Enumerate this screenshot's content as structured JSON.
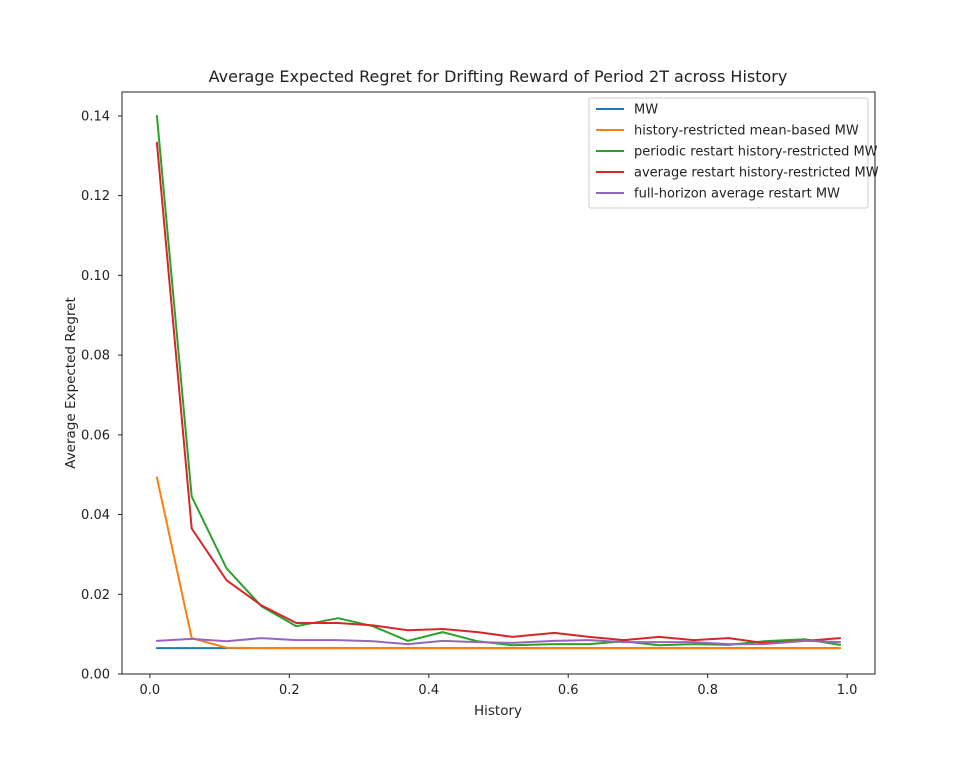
{
  "chart_data": {
    "type": "line",
    "title": "Average Expected Regret for Drifting Reward of Period 2T across History",
    "xlabel": "History",
    "ylabel": "Average Expected Regret",
    "xlim": [
      -0.04,
      1.04
    ],
    "ylim": [
      0.0,
      0.146
    ],
    "xticks": [
      0.0,
      0.2,
      0.4,
      0.6,
      0.8,
      1.0
    ],
    "xtick_labels": [
      "0.0",
      "0.2",
      "0.4",
      "0.6",
      "0.8",
      "1.0"
    ],
    "yticks": [
      0.0,
      0.02,
      0.04,
      0.06,
      0.08,
      0.1,
      0.12,
      0.14
    ],
    "ytick_labels": [
      "0.00",
      "0.02",
      "0.04",
      "0.06",
      "0.08",
      "0.10",
      "0.12",
      "0.14"
    ],
    "grid": false,
    "legend_position": "top-right",
    "x": [
      0.01,
      0.06,
      0.11,
      0.16,
      0.21,
      0.27,
      0.32,
      0.37,
      0.42,
      0.47,
      0.52,
      0.58,
      0.63,
      0.68,
      0.73,
      0.78,
      0.83,
      0.88,
      0.94,
      0.99
    ],
    "series": [
      {
        "name": "MW",
        "color": "#1f77b4",
        "values": [
          0.0065,
          0.0065,
          0.0065,
          0.0065,
          0.0065,
          0.0065,
          0.0065,
          0.0065,
          0.0065,
          0.0065,
          0.0065,
          0.0065,
          0.0065,
          0.0065,
          0.0065,
          0.0065,
          0.0065,
          0.0065,
          0.0065,
          0.0065
        ]
      },
      {
        "name": "history-restricted mean-based MW",
        "color": "#ff7f0e",
        "values": [
          0.0493,
          0.009,
          0.0066,
          0.0065,
          0.0065,
          0.0065,
          0.0065,
          0.0065,
          0.0065,
          0.0065,
          0.0065,
          0.0065,
          0.0065,
          0.0065,
          0.0065,
          0.0065,
          0.0065,
          0.0065,
          0.0065,
          0.0065
        ]
      },
      {
        "name": "periodic restart history-restricted MW",
        "color": "#2ca02c",
        "values": [
          0.14,
          0.0445,
          0.0265,
          0.017,
          0.012,
          0.014,
          0.012,
          0.0083,
          0.0105,
          0.0082,
          0.0072,
          0.0075,
          0.0075,
          0.0082,
          0.0072,
          0.0075,
          0.0073,
          0.0082,
          0.0087,
          0.0073
        ]
      },
      {
        "name": "average restart history-restricted MW",
        "color": "#d62728",
        "values": [
          0.1333,
          0.0365,
          0.0235,
          0.0172,
          0.0128,
          0.0128,
          0.0122,
          0.011,
          0.0113,
          0.0105,
          0.0093,
          0.0103,
          0.0093,
          0.0085,
          0.0093,
          0.0085,
          0.009,
          0.0078,
          0.0083,
          0.009
        ]
      },
      {
        "name": "full-horizon average restart MW",
        "color": "#9467bd",
        "values": [
          0.0083,
          0.0088,
          0.0082,
          0.009,
          0.0085,
          0.0085,
          0.0082,
          0.0075,
          0.0083,
          0.008,
          0.0078,
          0.0083,
          0.0085,
          0.008,
          0.008,
          0.008,
          0.0075,
          0.0075,
          0.0083,
          0.008
        ]
      }
    ]
  }
}
